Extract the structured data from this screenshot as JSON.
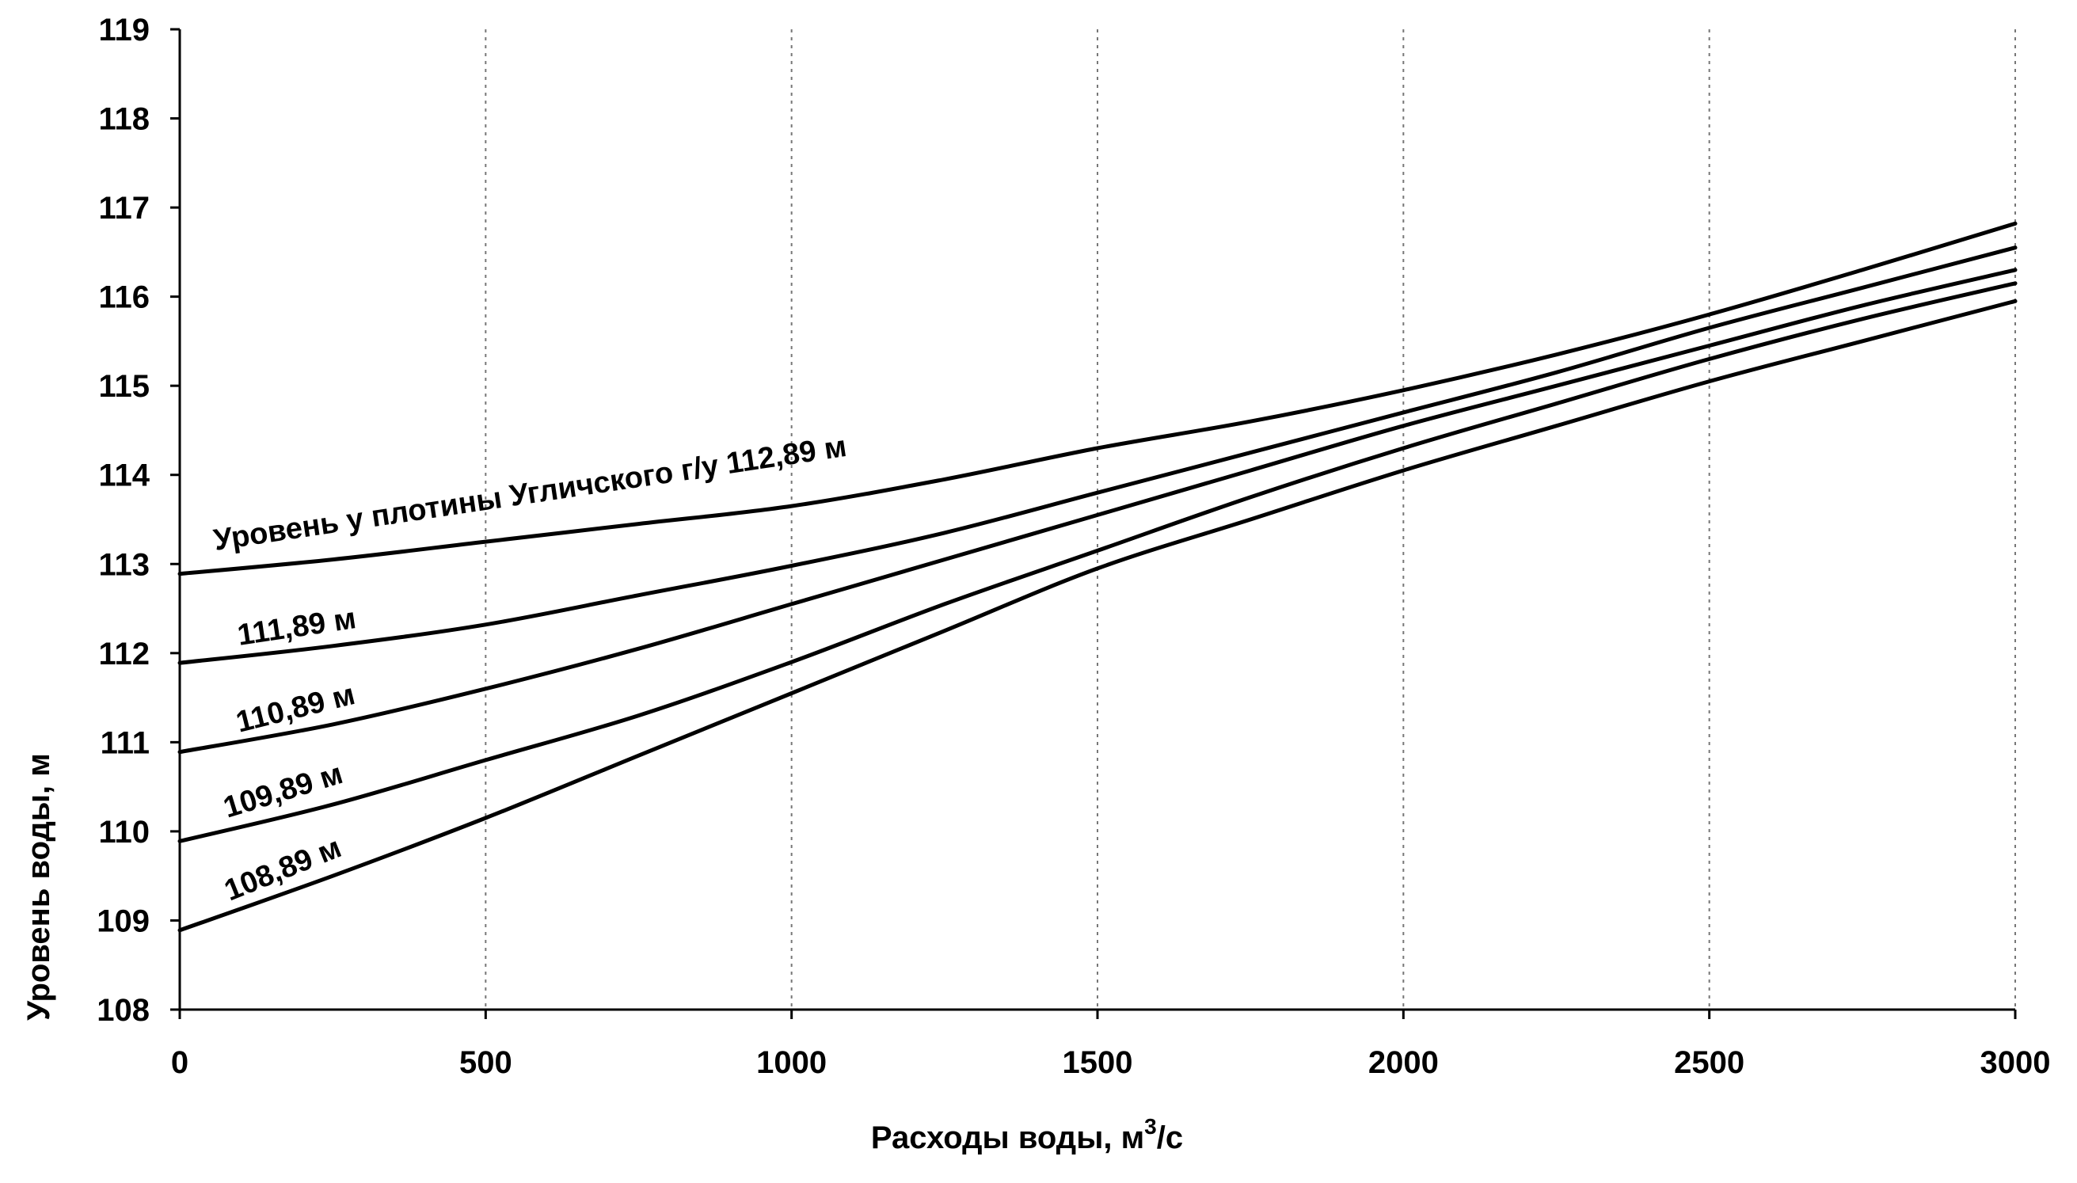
{
  "chart_data": {
    "type": "line",
    "xlabel_main": "Расходы воды, м",
    "xlabel_sup": "3",
    "xlabel_tail": "/с",
    "ylabel": "Уровень воды, м",
    "xlim": [
      0,
      3000
    ],
    "ylim": [
      108,
      119
    ],
    "x_ticks": [
      0,
      500,
      1000,
      1500,
      2000,
      2500,
      3000
    ],
    "y_ticks": [
      108,
      109,
      110,
      111,
      112,
      113,
      114,
      115,
      116,
      117,
      118,
      119
    ],
    "grid": "vertical dashed",
    "series": [
      {
        "name": "Уровень у плотины Угличского г/у 112,89 м",
        "x": [
          0,
          250,
          500,
          750,
          1000,
          1250,
          1500,
          1750,
          2000,
          2250,
          2500,
          2750,
          3000
        ],
        "y": [
          112.89,
          113.05,
          113.25,
          113.45,
          113.65,
          113.95,
          114.3,
          114.6,
          114.95,
          115.35,
          115.8,
          116.3,
          116.82
        ]
      },
      {
        "name": "111,89 м",
        "x": [
          0,
          250,
          500,
          750,
          1000,
          1250,
          1500,
          1750,
          2000,
          2250,
          2500,
          2750,
          3000
        ],
        "y": [
          111.89,
          112.08,
          112.32,
          112.65,
          112.98,
          113.35,
          113.8,
          114.25,
          114.7,
          115.15,
          115.65,
          116.1,
          116.55
        ]
      },
      {
        "name": "110,89 м",
        "x": [
          0,
          250,
          500,
          750,
          1000,
          1250,
          1500,
          1750,
          2000,
          2250,
          2500,
          2750,
          3000
        ],
        "y": [
          110.89,
          111.2,
          111.6,
          112.05,
          112.55,
          113.05,
          113.55,
          114.05,
          114.55,
          115.0,
          115.45,
          115.9,
          116.3
        ]
      },
      {
        "name": "109,89 м",
        "x": [
          0,
          250,
          500,
          750,
          1000,
          1250,
          1500,
          1750,
          2000,
          2250,
          2500,
          2750,
          3000
        ],
        "y": [
          109.89,
          110.3,
          110.8,
          111.3,
          111.9,
          112.55,
          113.15,
          113.75,
          114.3,
          114.8,
          115.3,
          115.75,
          116.15
        ]
      },
      {
        "name": "108,89 м",
        "x": [
          0,
          250,
          500,
          750,
          1000,
          1250,
          1500,
          1750,
          2000,
          2250,
          2500,
          2750,
          3000
        ],
        "y": [
          108.89,
          109.5,
          110.15,
          110.85,
          111.55,
          112.25,
          112.95,
          113.5,
          114.05,
          114.55,
          115.05,
          115.5,
          115.95
        ]
      }
    ]
  }
}
